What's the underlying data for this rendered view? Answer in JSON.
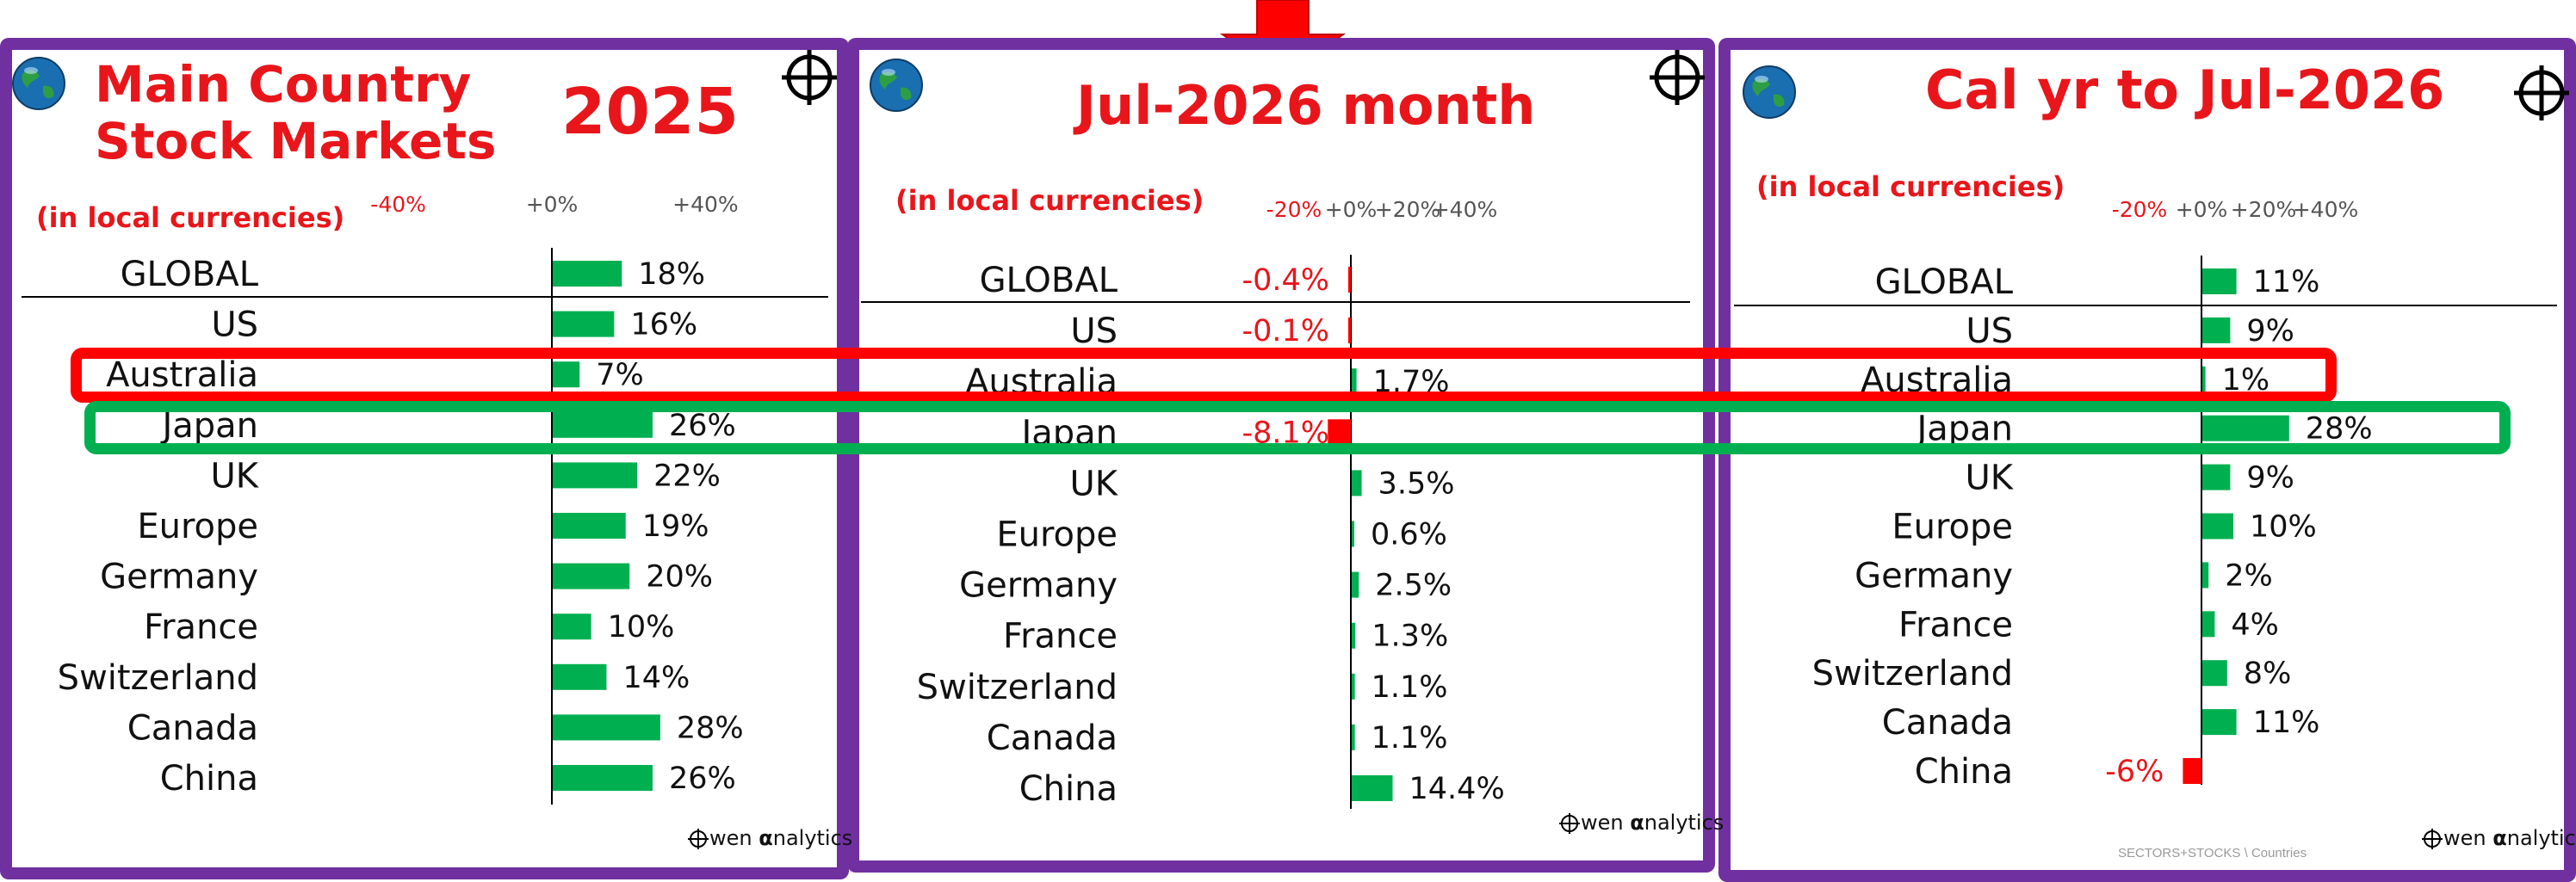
{
  "panels": [
    {
      "title_line1": "Main Country",
      "title_line2": "Stock Markets",
      "year": "2025",
      "subtitle": "(in local currencies)",
      "brand_prefix": "wen ",
      "brand_alpha": "α",
      "brand_suffix": "nalytics",
      "icons": [
        "globe-icon",
        "crosshair-icon"
      ]
    },
    {
      "title": "Jul-2026 month",
      "subtitle": "(in local currencies)",
      "brand_prefix": "wen ",
      "brand_alpha": "α",
      "brand_suffix": "nalytics",
      "icons": [
        "globe-icon",
        "crosshair-icon"
      ]
    },
    {
      "title": "Cal yr to Jul-2026",
      "subtitle": "(in local currencies)",
      "footnote": "SECTORS+STOCKS \\ Countries",
      "brand_prefix": "wen ",
      "brand_alpha": "α",
      "brand_suffix": "nalytics",
      "icons": [
        "globe-icon",
        "crosshair-icon"
      ]
    }
  ],
  "colors": {
    "frame": "#7030a0",
    "positive": "#00b050",
    "negative": "#ff0000",
    "title": "#e8161b",
    "highlight_australia": "#ff0000",
    "highlight_japan": "#00b050"
  },
  "chart_data": [
    {
      "type": "bar",
      "orientation": "horizontal",
      "title": "Main Country Stock Markets 2025",
      "subtitle": "(in local currencies)",
      "categories": [
        "GLOBAL",
        "US",
        "Australia",
        "Japan",
        "UK",
        "Europe",
        "Germany",
        "France",
        "Switzerland",
        "Canada",
        "China"
      ],
      "values": [
        18,
        16,
        7,
        26,
        22,
        19,
        20,
        10,
        14,
        28,
        26
      ],
      "value_labels": [
        "18%",
        "16%",
        "7%",
        "26%",
        "22%",
        "19%",
        "20%",
        "10%",
        "14%",
        "28%",
        "26%"
      ],
      "tick_values": [
        -40,
        0,
        40
      ],
      "tick_labels": [
        "-40%",
        "+0%",
        "+40%"
      ],
      "xlim": [
        -63,
        55
      ],
      "grid": false
    },
    {
      "type": "bar",
      "orientation": "horizontal",
      "title": "Jul-2026 month",
      "subtitle": "(in local currencies)",
      "categories": [
        "GLOBAL",
        "US",
        "Australia",
        "Japan",
        "UK",
        "Europe",
        "Germany",
        "France",
        "Switzerland",
        "Canada",
        "China"
      ],
      "values": [
        -0.4,
        -0.1,
        1.7,
        -8.1,
        3.5,
        0.6,
        2.5,
        1.3,
        1.1,
        1.1,
        14.4
      ],
      "value_labels": [
        "-0.4%",
        "-0.1%",
        "1.7%",
        "-8.1%",
        "3.5%",
        "0.6%",
        "2.5%",
        "1.3%",
        "1.1%",
        "1.1%",
        "14.4%"
      ],
      "tick_values": [
        -20,
        0,
        20,
        40
      ],
      "tick_labels": [
        "-20%",
        "+0%",
        "+20%",
        "+40%"
      ],
      "xlim": [
        -33,
        60
      ],
      "grid": false
    },
    {
      "type": "bar",
      "orientation": "horizontal",
      "title": "Cal yr to Jul-2026",
      "subtitle": "(in local currencies)",
      "categories": [
        "GLOBAL",
        "US",
        "Australia",
        "Japan",
        "UK",
        "Europe",
        "Germany",
        "France",
        "Switzerland",
        "Canada",
        "China"
      ],
      "values": [
        11,
        9,
        1,
        28,
        9,
        10,
        2,
        4,
        8,
        11,
        -6
      ],
      "value_labels": [
        "11%",
        "9%",
        "1%",
        "28%",
        "9%",
        "10%",
        "2%",
        "4%",
        "8%",
        "11%",
        "-6%"
      ],
      "tick_values": [
        -20,
        0,
        20,
        40
      ],
      "tick_labels": [
        "-20%",
        "+0%",
        "+20%",
        "+40%"
      ],
      "xlim": [
        -30,
        54
      ],
      "grid": false
    }
  ]
}
